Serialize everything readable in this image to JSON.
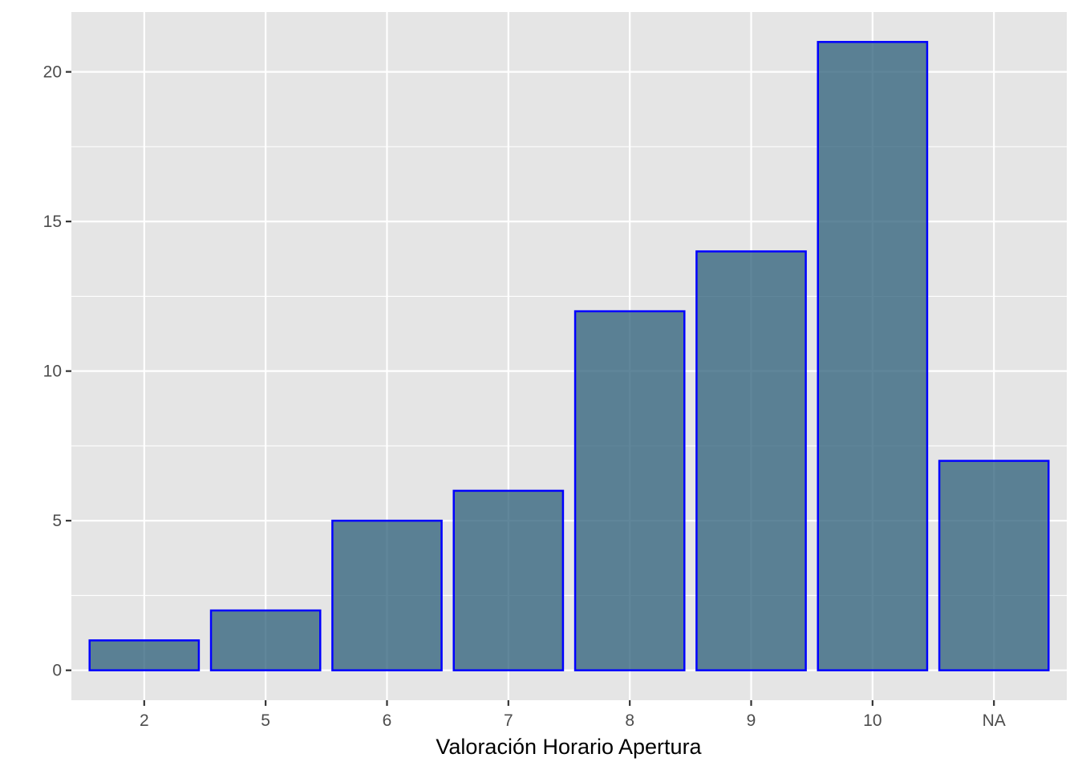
{
  "chart_data": {
    "type": "bar",
    "categories": [
      "2",
      "5",
      "6",
      "7",
      "8",
      "9",
      "10",
      "NA"
    ],
    "values": [
      1,
      2,
      5,
      6,
      12,
      14,
      21,
      7
    ],
    "xlabel": "Valoración Horario Apertura",
    "ylabel": "",
    "ylim": [
      -1,
      22
    ],
    "yticks": [
      0,
      5,
      10,
      15,
      20
    ],
    "grid": true,
    "colors": {
      "bar_fill": "#2b5d78",
      "bar_fill_opacity": 0.75,
      "bar_stroke": "#0000ff",
      "panel_background": "#e5e5e5",
      "grid": "#ffffff"
    }
  }
}
